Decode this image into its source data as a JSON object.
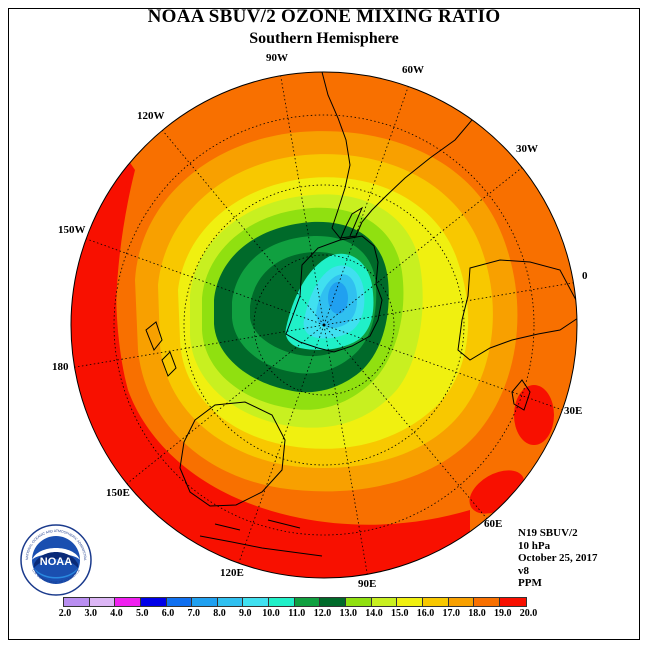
{
  "title": "NOAA SBUV/2 OZONE MIXING RATIO",
  "subtitle": "Southern Hemisphere",
  "longitude_labels": [
    "90W",
    "60W",
    "30W",
    "0",
    "30E",
    "60E",
    "90E",
    "120E",
    "150E",
    "180",
    "150W",
    "120W"
  ],
  "info": {
    "instrument": "N19 SBUV/2",
    "level": "10 hPa",
    "date": "October 25, 2017",
    "version": "v8",
    "units": "PPM"
  },
  "logo": {
    "label": "NOAA",
    "ring_text": "NATIONAL OCEANIC AND ATMOSPHERIC ADMINISTRATION",
    "ring_text_bottom": "U.S. DEPARTMENT OF COMMERCE"
  },
  "legend": {
    "labels": [
      "2.0",
      "3.0",
      "4.0",
      "5.0",
      "6.0",
      "7.0",
      "8.0",
      "9.0",
      "10.0",
      "11.0",
      "12.0",
      "13.0",
      "14.0",
      "15.0",
      "16.0",
      "17.0",
      "18.0",
      "19.0",
      "20.0"
    ],
    "colors": [
      "#b98ef0",
      "#dcb6f5",
      "#f020f0",
      "#0000e8",
      "#1070f0",
      "#20a0f0",
      "#30c0f0",
      "#40e0f0",
      "#20f0c8",
      "#10a040",
      "#006a2a",
      "#90e010",
      "#c8f020",
      "#f0f010",
      "#f8c800",
      "#f8a000",
      "#f87000",
      "#f81000",
      "#8c5a3c"
    ]
  },
  "map": {
    "projection": "polar stereographic, South Pole centered",
    "ocean_background": "#f87000"
  }
}
